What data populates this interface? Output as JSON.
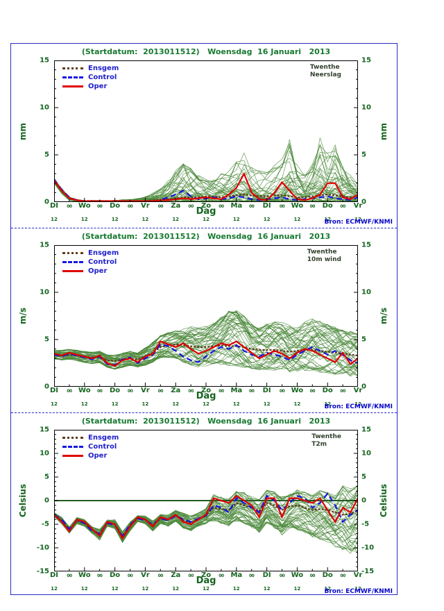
{
  "colors": {
    "frame_blue": "#2929c8",
    "title_green": "#177a30",
    "axis_green": "#14641e",
    "legend_blue": "#2020cc",
    "bron_blue": "#0808c8",
    "station_color": "#33412e",
    "ensemble_green": "#4c8a3c",
    "oper_red": "#e00000",
    "control_blue": "#1515e0",
    "ensgem_brown": "#5e3c1e",
    "zero_line_green": "#205c20"
  },
  "shared": {
    "title": "(Startdatum:  2013011512)   Woensdag  16 Januari   2013",
    "xlabel": "Dag",
    "bron": "Bron: ECMWF/KNMI",
    "station": "Twenthe",
    "legend": [
      "Ensgem",
      "Control",
      "Oper"
    ],
    "day_labels": [
      "DI",
      "Wo",
      "Do",
      "Vr",
      "Za",
      "Zo",
      "Ma",
      "DI",
      "Wo",
      "Do",
      "Vr"
    ],
    "minor_hour_label": "00",
    "sub_hour_label": "12"
  },
  "panels": [
    {
      "variable": "Neerslag",
      "ylabel": "mm"
    },
    {
      "variable": "10m wind",
      "ylabel": "m/s"
    },
    {
      "variable": "T2m",
      "ylabel": "Celsius"
    }
  ],
  "chart_data": [
    {
      "type": "line",
      "title": "(Startdatum: 2013011512) Woensdag 16 Januari 2013",
      "station": "Twenthe",
      "variable": "Neerslag",
      "xlabel": "Dag",
      "ylabel": "mm",
      "ylim": [
        0,
        15
      ],
      "yticks": [
        0,
        5,
        10,
        15
      ],
      "ytick_step": 5,
      "x_count": 41,
      "day_tick_labels": [
        "DI",
        "Wo",
        "Do",
        "Vr",
        "Za",
        "Zo",
        "Ma",
        "DI",
        "Wo",
        "Do",
        "Vr"
      ],
      "legend_position": "top-left",
      "zero_line": false,
      "series": [
        {
          "name": "Ensgem",
          "color_key": "ensgem_brown",
          "dash": "0.8 4.2",
          "linecap": "round",
          "width": 2.4,
          "values": [
            2.2,
            1.2,
            0.4,
            0.2,
            0.1,
            0.1,
            0.1,
            0.1,
            0.1,
            0.1,
            0.1,
            0.1,
            0.1,
            0.2,
            0.2,
            0.3,
            0.4,
            0.5,
            0.5,
            0.5,
            0.6,
            0.6,
            0.5,
            0.6,
            0.7,
            0.8,
            0.7,
            0.6,
            0.6,
            0.7,
            0.7,
            0.6,
            0.5,
            0.5,
            0.6,
            0.7,
            0.8,
            0.7,
            0.6,
            0.5,
            0.6
          ]
        },
        {
          "name": "Control",
          "color_key": "control_blue",
          "dash": "8 5",
          "width": 2.2,
          "values": [
            2.4,
            1.3,
            0.5,
            0.2,
            0.1,
            0.1,
            0.1,
            0.1,
            0.1,
            0.1,
            0.1,
            0.1,
            0.1,
            0.1,
            0.2,
            0.5,
            0.8,
            1.2,
            0.6,
            0.3,
            0.4,
            0.5,
            0.3,
            0.4,
            0.6,
            0.5,
            0.3,
            0.2,
            0.3,
            0.4,
            0.5,
            0.3,
            0.2,
            0.3,
            0.4,
            0.5,
            0.6,
            0.4,
            0.3,
            0.2,
            0.5
          ]
        },
        {
          "name": "Oper",
          "color_key": "oper_red",
          "width": 2.2,
          "values": [
            2.3,
            1.2,
            0.4,
            0.2,
            0.1,
            0.1,
            0.1,
            0.1,
            0.1,
            0.1,
            0.1,
            0.1,
            0.1,
            0.1,
            0.2,
            0.2,
            0.3,
            0.4,
            0.3,
            0.4,
            0.5,
            0.4,
            0.3,
            0.8,
            1.5,
            3.0,
            1.0,
            0.3,
            0.2,
            1.0,
            2.1,
            1.2,
            0.3,
            0.2,
            0.4,
            0.8,
            2.0,
            2.0,
            0.5,
            0.3,
            0.8
          ]
        }
      ],
      "ensemble": {
        "count": 50,
        "skew": 2.6,
        "envelope_min": [
          2.0,
          0.9,
          0.2,
          0.05,
          0,
          0,
          0,
          0,
          0,
          0,
          0,
          0,
          0,
          0,
          0,
          0,
          0,
          0,
          0,
          0,
          0,
          0,
          0,
          0,
          0,
          0,
          0,
          0,
          0,
          0,
          0,
          0,
          0,
          0,
          0,
          0,
          0,
          0,
          0,
          0,
          0
        ],
        "envelope_max": [
          2.6,
          1.5,
          0.6,
          0.3,
          0.2,
          0.2,
          0.2,
          0.2,
          0.2,
          0.3,
          0.3,
          0.4,
          0.6,
          1.0,
          1.5,
          2.5,
          3.5,
          4.5,
          3.8,
          3.0,
          2.6,
          2.8,
          3.2,
          3.8,
          4.5,
          5.5,
          4.5,
          3.5,
          3.6,
          4.2,
          5.0,
          7.0,
          4.5,
          3.2,
          4.5,
          7.2,
          5.5,
          6.8,
          4.2,
          3.0,
          2.2
        ]
      }
    },
    {
      "type": "line",
      "title": "(Startdatum: 2013011512) Woensdag 16 Januari 2013",
      "station": "Twenthe",
      "variable": "10m wind",
      "xlabel": "Dag",
      "ylabel": "m/s",
      "ylim": [
        0,
        15
      ],
      "yticks": [
        0,
        5,
        10,
        15
      ],
      "ytick_step": 5,
      "x_count": 41,
      "day_tick_labels": [
        "DI",
        "Wo",
        "Do",
        "Vr",
        "Za",
        "Zo",
        "Ma",
        "DI",
        "Wo",
        "Do",
        "Vr"
      ],
      "legend_position": "top-left",
      "zero_line": false,
      "series": [
        {
          "name": "Ensgem",
          "color_key": "ensgem_brown",
          "dash": "0.8 4.2",
          "linecap": "round",
          "width": 2.4,
          "values": [
            3.4,
            3.3,
            3.4,
            3.3,
            3.2,
            3.1,
            3.2,
            2.8,
            2.7,
            2.9,
            3.0,
            2.9,
            3.2,
            3.6,
            4.2,
            4.4,
            4.5,
            4.4,
            4.3,
            4.2,
            4.2,
            4.3,
            4.4,
            4.3,
            4.3,
            4.2,
            4.0,
            3.9,
            3.9,
            3.9,
            3.8,
            3.7,
            3.8,
            3.9,
            3.9,
            3.8,
            3.7,
            3.6,
            3.5,
            3.4,
            3.3
          ]
        },
        {
          "name": "Control",
          "color_key": "control_blue",
          "dash": "8 5",
          "width": 2.2,
          "values": [
            3.4,
            3.2,
            3.5,
            3.3,
            3.1,
            2.9,
            3.2,
            2.4,
            2.3,
            2.9,
            3.1,
            2.5,
            3.0,
            3.4,
            4.5,
            4.3,
            3.8,
            3.2,
            2.8,
            2.6,
            3.2,
            3.8,
            4.2,
            4.0,
            4.4,
            3.8,
            3.4,
            3.2,
            3.6,
            3.4,
            3.2,
            2.8,
            3.4,
            3.8,
            4.2,
            3.8,
            3.4,
            3.8,
            3.4,
            2.8,
            2.5
          ]
        },
        {
          "name": "Oper",
          "color_key": "oper_red",
          "width": 2.2,
          "values": [
            3.5,
            3.3,
            3.6,
            3.4,
            3.2,
            3.0,
            3.3,
            2.5,
            2.2,
            2.8,
            3.0,
            2.6,
            3.2,
            3.5,
            4.8,
            4.5,
            4.2,
            4.6,
            4.0,
            3.5,
            3.8,
            4.2,
            4.6,
            4.4,
            4.8,
            4.2,
            3.6,
            3.0,
            3.4,
            3.8,
            3.5,
            3.0,
            3.6,
            4.0,
            3.8,
            3.4,
            3.0,
            2.6,
            3.6,
            2.4,
            3.0
          ]
        }
      ],
      "ensemble": {
        "count": 50,
        "skew": 1.0,
        "envelope_min": [
          2.8,
          2.7,
          2.8,
          2.7,
          2.5,
          2.4,
          2.5,
          2.0,
          1.8,
          2.0,
          2.2,
          2.0,
          2.2,
          2.5,
          3.0,
          3.0,
          2.8,
          2.5,
          2.2,
          2.0,
          2.0,
          2.2,
          2.2,
          2.0,
          2.0,
          1.8,
          1.8,
          1.6,
          1.6,
          1.6,
          1.5,
          1.4,
          1.5,
          1.5,
          1.5,
          1.4,
          1.3,
          1.2,
          1.2,
          1.0,
          1.0
        ],
        "envelope_max": [
          4.0,
          3.9,
          4.0,
          3.9,
          3.8,
          3.7,
          3.8,
          3.5,
          3.4,
          3.6,
          3.8,
          3.6,
          4.2,
          4.8,
          5.5,
          5.8,
          6.0,
          6.2,
          6.5,
          6.3,
          6.6,
          6.8,
          7.5,
          8.2,
          8.5,
          7.8,
          6.8,
          6.5,
          6.8,
          7.0,
          7.2,
          6.8,
          6.5,
          7.0,
          7.5,
          7.2,
          6.8,
          6.5,
          6.2,
          6.0,
          5.8
        ]
      }
    },
    {
      "type": "line",
      "title": "(Startdatum: 2013011512) Woensdag 16 Januari 2013",
      "station": "Twenthe",
      "variable": "T2m",
      "xlabel": "Dag",
      "ylabel": "Celsius",
      "ylim": [
        -15,
        15
      ],
      "yticks": [
        -15,
        -10,
        -5,
        0,
        5,
        10,
        15
      ],
      "ytick_step": 5,
      "x_count": 41,
      "day_tick_labels": [
        "DI",
        "Wo",
        "Do",
        "Vr",
        "Za",
        "Zo",
        "Ma",
        "DI",
        "Wo",
        "Do",
        "Vr"
      ],
      "legend_position": "top-left",
      "zero_line": true,
      "series": [
        {
          "name": "Ensgem",
          "color_key": "ensgem_brown",
          "dash": "0.8 4.2",
          "linecap": "round",
          "width": 2.4,
          "values": [
            -3.0,
            -4.2,
            -6.2,
            -4.3,
            -4.8,
            -6.2,
            -7.0,
            -4.8,
            -5.0,
            -7.5,
            -5.2,
            -3.8,
            -4.0,
            -5.2,
            -3.8,
            -4.0,
            -3.2,
            -4.2,
            -4.8,
            -4.0,
            -3.0,
            -1.5,
            -1.8,
            -2.0,
            -0.5,
            -1.0,
            -1.5,
            -2.2,
            -0.5,
            -1.0,
            -2.0,
            -1.2,
            -1.0,
            -1.5,
            -2.0,
            -1.8,
            -2.0,
            -2.5,
            -3.0,
            -2.8,
            -2.0
          ]
        },
        {
          "name": "Control",
          "color_key": "control_blue",
          "dash": "8 5",
          "width": 2.2,
          "values": [
            -3.0,
            -4.0,
            -6.0,
            -4.2,
            -4.8,
            -6.5,
            -7.0,
            -4.8,
            -5.2,
            -7.5,
            -5.0,
            -3.8,
            -4.2,
            -5.0,
            -3.8,
            -4.2,
            -3.2,
            -4.0,
            -4.5,
            -3.8,
            -3.2,
            -1.0,
            -1.5,
            -2.5,
            0.5,
            -0.5,
            -1.5,
            -2.5,
            1.0,
            0.0,
            -2.0,
            -0.5,
            1.0,
            0.5,
            -1.5,
            -0.5,
            1.5,
            -1.0,
            -4.5,
            -3.0,
            -2.0
          ]
        },
        {
          "name": "Oper",
          "color_key": "oper_red",
          "width": 2.2,
          "values": [
            -3.0,
            -4.5,
            -6.5,
            -4.0,
            -4.5,
            -6.0,
            -7.5,
            -4.5,
            -5.0,
            -8.0,
            -5.5,
            -3.5,
            -4.0,
            -5.5,
            -3.5,
            -4.0,
            -3.0,
            -4.5,
            -5.0,
            -4.0,
            -3.0,
            0.5,
            0.0,
            -0.5,
            1.0,
            0.0,
            -1.0,
            -3.5,
            0.5,
            0.5,
            -3.5,
            0.5,
            0.5,
            0.0,
            -0.5,
            0.5,
            -2.0,
            -4.5,
            -1.5,
            -2.5,
            0.5
          ]
        }
      ],
      "ensemble": {
        "count": 50,
        "skew": 1.0,
        "envelope_min": [
          -3.5,
          -5.0,
          -7.0,
          -5.0,
          -5.5,
          -7.0,
          -8.5,
          -5.5,
          -6.0,
          -9.0,
          -6.5,
          -4.5,
          -5.0,
          -6.5,
          -5.0,
          -5.5,
          -4.5,
          -6.0,
          -6.5,
          -5.5,
          -5.0,
          -4.5,
          -5.0,
          -5.5,
          -4.5,
          -5.0,
          -6.0,
          -7.0,
          -5.0,
          -6.0,
          -7.5,
          -6.0,
          -6.5,
          -7.0,
          -8.0,
          -8.5,
          -9.0,
          -10.0,
          -11.0,
          -11.5,
          -12.0
        ],
        "envelope_max": [
          -2.5,
          -3.5,
          -5.5,
          -3.5,
          -4.0,
          -5.5,
          -6.0,
          -4.0,
          -4.0,
          -6.5,
          -4.5,
          -3.0,
          -3.2,
          -4.2,
          -2.8,
          -3.0,
          -2.0,
          -2.5,
          -3.0,
          -2.5,
          -1.5,
          1.5,
          1.0,
          0.5,
          2.5,
          2.0,
          1.5,
          0.5,
          2.5,
          2.0,
          1.0,
          1.5,
          2.5,
          2.0,
          1.5,
          2.5,
          2.0,
          1.5,
          3.5,
          3.0,
          4.5
        ]
      }
    }
  ]
}
